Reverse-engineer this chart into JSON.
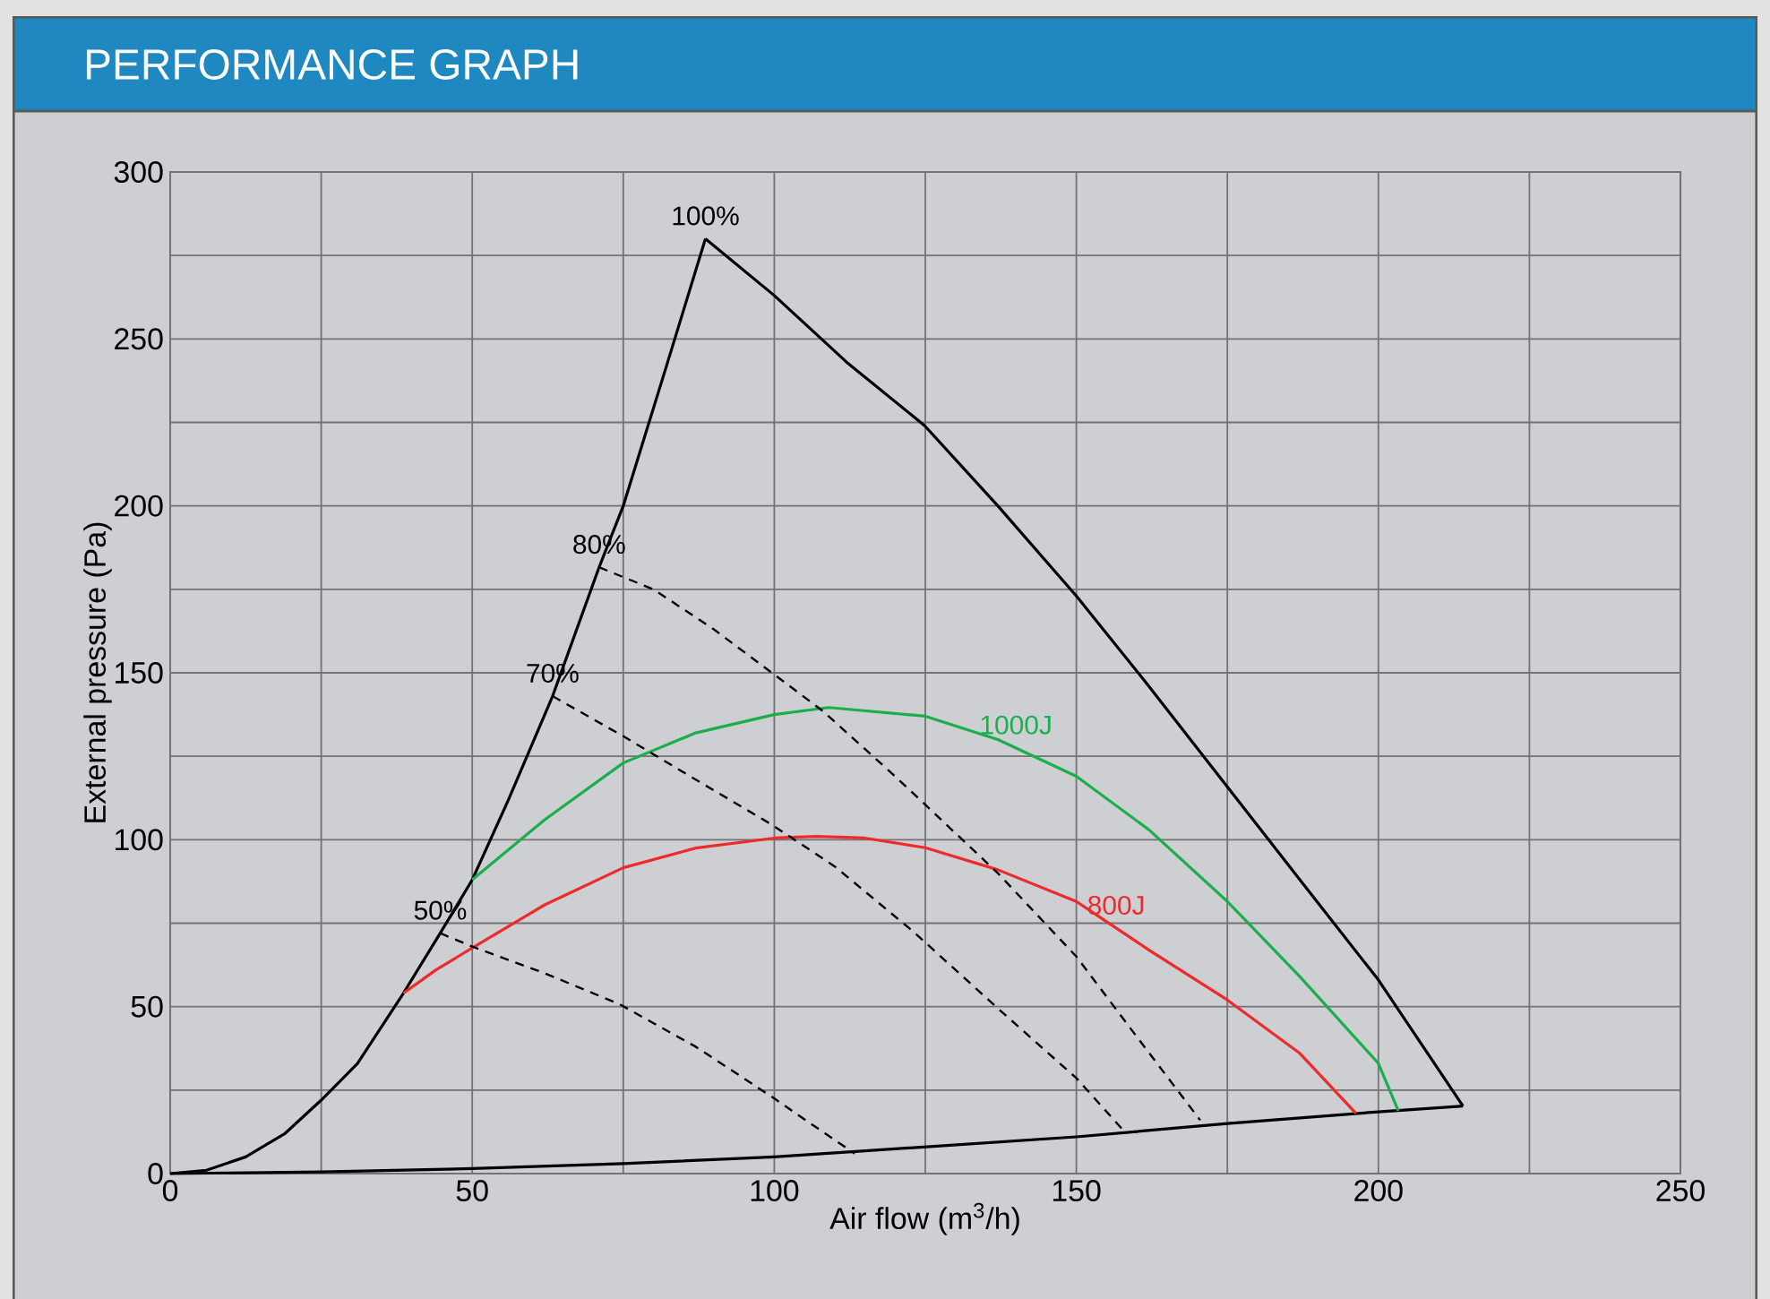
{
  "chart_data": {
    "type": "line",
    "title": "PERFORMANCE GRAPH",
    "xlabel": "Air flow (m$^{3}$/h)",
    "ylabel": "External pressure (Pa)",
    "xlim": [
      0,
      250
    ],
    "ylim": [
      0,
      300
    ],
    "xticks": [
      0,
      50,
      100,
      150,
      200,
      250
    ],
    "yticks": [
      0,
      50,
      100,
      150,
      200,
      250,
      300
    ],
    "grid": true,
    "marker": "none",
    "series": [
      {
        "color": "#000000",
        "line_style": "solid",
        "x": [
          0,
          6,
          12.5,
          19,
          25,
          31,
          38.6,
          44.7,
          50,
          56,
          63.3,
          71,
          75,
          82,
          88.6
        ],
        "values": [
          0,
          1,
          5,
          12,
          22,
          33,
          54,
          72,
          88,
          112,
          143,
          181.6,
          200,
          241,
          280
        ]
      },
      {
        "color": "#000000",
        "line_style": "solid",
        "x": [
          88.6,
          100,
          112,
          124.9,
          137,
          150,
          162,
          174.5,
          187,
          200,
          214
        ],
        "values": [
          280,
          263,
          243,
          224,
          200,
          173,
          146,
          117,
          88,
          58,
          20.2
        ]
      },
      {
        "color": "#000000",
        "line_style": "solid",
        "x": [
          0,
          25,
          50,
          75,
          100,
          125,
          150,
          175,
          200,
          214
        ],
        "values": [
          0,
          0.5,
          1.5,
          3,
          5,
          8,
          11,
          15,
          18.5,
          20.2
        ]
      },
      {
        "color": "#ee2a2a",
        "line_style": "solid",
        "x": [
          38.6,
          44,
          50,
          62,
          75,
          87,
          100,
          107,
          115,
          125,
          137,
          150,
          162,
          175,
          187,
          196.3
        ],
        "values": [
          54,
          61,
          67.6,
          80.5,
          91.6,
          97.5,
          100.5,
          101,
          100.5,
          97.6,
          91,
          81.5,
          67,
          52,
          36,
          18
        ]
      },
      {
        "color": "#1aaf4b",
        "line_style": "solid",
        "x": [
          50,
          56,
          62,
          75,
          87,
          100,
          109,
          125,
          137,
          150,
          162,
          175,
          187,
          200,
          203.3
        ],
        "values": [
          88,
          97,
          106,
          123,
          132,
          137.5,
          139.6,
          137,
          130,
          119,
          103,
          81.5,
          59,
          33,
          18.8
        ]
      },
      {
        "color": "#000000",
        "line_style": "dashed",
        "x": [
          71,
          80,
          90,
          99.6,
          108,
          120,
          137,
          150,
          160,
          170.5
        ],
        "values": [
          181.6,
          175,
          163,
          150,
          138.6,
          119,
          90,
          65,
          41,
          16
        ]
      },
      {
        "color": "#000000",
        "line_style": "dashed",
        "x": [
          63.3,
          75,
          87,
          99.6,
          110,
          123,
          137,
          150,
          158
        ],
        "values": [
          143,
          131,
          118,
          104.5,
          92,
          72.5,
          49.5,
          28.6,
          12.5
        ]
      },
      {
        "color": "#000000",
        "line_style": "dashed",
        "x": [
          44.7,
          50,
          62,
          74.3,
          87,
          99.6,
          106,
          113.3
        ],
        "values": [
          72,
          68,
          60,
          50.8,
          38,
          23,
          15,
          6
        ]
      }
    ],
    "annotations": [
      {
        "text": "100%",
        "x": 88.6,
        "y": 280
      },
      {
        "text": "80%",
        "x": 71,
        "y": 181.6
      },
      {
        "text": "70%",
        "x": 63.3,
        "y": 143
      },
      {
        "text": "50%",
        "x": 44.7,
        "y": 72
      },
      {
        "text": "1000J",
        "x": 140,
        "y": 127.5
      },
      {
        "text": "800J",
        "x": 156.6,
        "y": 73.5
      }
    ]
  }
}
